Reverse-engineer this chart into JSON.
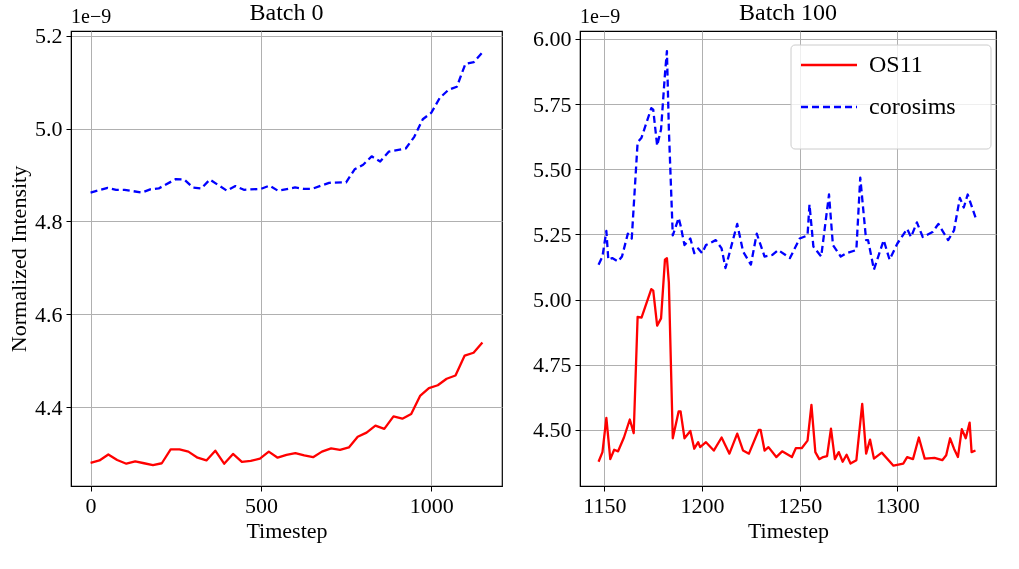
{
  "chart_data": [
    {
      "type": "line",
      "title": "Batch 0",
      "xlabel": "Timestep",
      "ylabel": "Normalized Intensity",
      "annotations": [
        "1e−9"
      ],
      "xlim": [
        -57.5,
        1207.5
      ],
      "xticks": [
        0,
        500,
        1000
      ],
      "ylim": [
        4.23,
        5.21
      ],
      "yticks": [
        4.4,
        4.6,
        4.8,
        {
          "value": 5,
          "label": "5.0"
        },
        5.2
      ],
      "grid": true,
      "series": [
        {
          "color": "#ff0000",
          "line_style": "solid",
          "x": [
            0,
            26,
            52,
            78,
            105,
            131,
            157,
            183,
            209,
            235,
            261,
            287,
            314,
            340,
            366,
            392,
            418,
            444,
            470,
            497,
            523,
            549,
            575,
            601,
            627,
            653,
            679,
            706,
            732,
            758,
            784,
            810,
            836,
            862,
            889,
            915,
            941,
            967,
            993,
            1019,
            1045,
            1071,
            1098,
            1124,
            1150
          ],
          "values": [
            4.28,
            4.285,
            4.298,
            4.286,
            4.278,
            4.283,
            4.279,
            4.275,
            4.279,
            4.309,
            4.309,
            4.304,
            4.291,
            4.285,
            4.306,
            4.278,
            4.299,
            4.282,
            4.284,
            4.289,
            4.304,
            4.291,
            4.297,
            4.301,
            4.296,
            4.292,
            4.304,
            4.311,
            4.308,
            4.313,
            4.336,
            4.345,
            4.36,
            4.353,
            4.38,
            4.375,
            4.385,
            4.424,
            4.441,
            4.447,
            4.461,
            4.468,
            4.511,
            4.517,
            4.539
          ]
        },
        {
          "color": "#0000ff",
          "line_style": "dashed",
          "x": [
            0,
            50,
            75,
            100,
            150,
            175,
            200,
            250,
            275,
            300,
            325,
            350,
            400,
            425,
            450,
            500,
            525,
            550,
            600,
            625,
            650,
            700,
            750,
            775,
            800,
            825,
            850,
            875,
            925,
            950,
            975,
            1000,
            1025,
            1050,
            1075,
            1100,
            1125,
            1150
          ],
          "values": [
            4.862,
            4.872,
            4.868,
            4.868,
            4.862,
            4.869,
            4.871,
            4.891,
            4.89,
            4.873,
            4.871,
            4.89,
            4.866,
            4.876,
            4.868,
            4.87,
            4.877,
            4.866,
            4.873,
            4.87,
            4.87,
            4.883,
            4.884,
            4.912,
            4.922,
            4.94,
            4.929,
            4.95,
            4.957,
            4.982,
            5.02,
            5.034,
            5.066,
            5.083,
            5.09,
            5.139,
            5.143,
            5.164
          ]
        }
      ]
    },
    {
      "type": "line",
      "title": "Batch 100",
      "xlabel": "Timestep",
      "annotations": [
        "1e−9"
      ],
      "xlim": [
        1137.5,
        1350.5
      ],
      "xticks": [
        1150,
        1200,
        1250,
        1300
      ],
      "ylim": [
        4.285,
        6.03
      ],
      "yticks": [
        {
          "value": 4.5,
          "label": "4.50"
        },
        {
          "value": 4.75,
          "label": "4.75"
        },
        {
          "value": 5,
          "label": "5.00"
        },
        {
          "value": 5.25,
          "label": "5.25"
        },
        {
          "value": 5.5,
          "label": "5.50"
        },
        {
          "value": 5.75,
          "label": "5.75"
        },
        {
          "value": 6,
          "label": "6.00"
        }
      ],
      "grid": true,
      "legend": "top right",
      "series": [
        {
          "name": "OS11",
          "color": "#ff0000",
          "line_style": "solid",
          "x": [
            1147,
            1149,
            1151,
            1153,
            1155,
            1157,
            1160,
            1163,
            1165,
            1167,
            1169,
            1174,
            1175,
            1177,
            1179,
            1181,
            1182,
            1183,
            1185,
            1188,
            1189,
            1191,
            1194,
            1196,
            1198,
            1199,
            1202,
            1206,
            1210,
            1214,
            1218,
            1221,
            1224,
            1229,
            1230,
            1232,
            1234,
            1238,
            1241,
            1246,
            1248,
            1251,
            1254,
            1256,
            1258,
            1260,
            1262,
            1264,
            1266,
            1268,
            1270,
            1272,
            1274,
            1276,
            1279,
            1282,
            1284,
            1286,
            1288,
            1292,
            1298,
            1303,
            1305,
            1308,
            1311,
            1314,
            1319,
            1323,
            1325,
            1327,
            1329,
            1331,
            1333,
            1335,
            1337,
            1338,
            1340
          ],
          "values": [
            4.378,
            4.415,
            4.546,
            4.388,
            4.424,
            4.418,
            4.471,
            4.54,
            4.488,
            4.934,
            4.931,
            5.04,
            5.034,
            4.9,
            4.928,
            5.153,
            5.159,
            5.065,
            4.468,
            4.571,
            4.571,
            4.468,
            4.496,
            4.428,
            4.453,
            4.434,
            4.453,
            4.421,
            4.471,
            4.409,
            4.486,
            4.421,
            4.409,
            4.5,
            4.5,
            4.421,
            4.434,
            4.396,
            4.418,
            4.396,
            4.43,
            4.43,
            4.459,
            4.596,
            4.415,
            4.388,
            4.396,
            4.4,
            4.505,
            4.388,
            4.415,
            4.378,
            4.405,
            4.371,
            4.384,
            4.6,
            4.409,
            4.463,
            4.39,
            4.413,
            4.363,
            4.371,
            4.396,
            4.388,
            4.471,
            4.39,
            4.393,
            4.384,
            4.403,
            4.468,
            4.428,
            4.396,
            4.503,
            4.468,
            4.528,
            4.415,
            4.421
          ]
        },
        {
          "name": "corosims",
          "color": "#0000ff",
          "line_style": "dashed",
          "x": [
            1147,
            1149,
            1151,
            1152,
            1154,
            1157,
            1159,
            1162,
            1164,
            1167,
            1169,
            1174,
            1175,
            1177,
            1179,
            1181,
            1182,
            1183,
            1185,
            1188,
            1189,
            1191,
            1194,
            1196,
            1198,
            1200,
            1202,
            1207,
            1210,
            1212,
            1218,
            1221,
            1225,
            1228,
            1232,
            1236,
            1239,
            1245,
            1250,
            1254,
            1255,
            1257,
            1261,
            1265,
            1267,
            1271,
            1274,
            1279,
            1281,
            1284,
            1285,
            1288,
            1293,
            1296,
            1300,
            1305,
            1307,
            1310,
            1313,
            1318,
            1321,
            1326,
            1329,
            1332,
            1334,
            1336,
            1340
          ],
          "values": [
            5.134,
            5.165,
            5.263,
            5.153,
            5.159,
            5.146,
            5.165,
            5.253,
            5.234,
            5.603,
            5.621,
            5.734,
            5.728,
            5.59,
            5.653,
            5.865,
            5.953,
            5.653,
            5.246,
            5.313,
            5.284,
            5.209,
            5.234,
            5.178,
            5.196,
            5.178,
            5.209,
            5.228,
            5.196,
            5.121,
            5.29,
            5.184,
            5.134,
            5.253,
            5.165,
            5.171,
            5.19,
            5.159,
            5.234,
            5.246,
            5.365,
            5.203,
            5.165,
            5.403,
            5.209,
            5.165,
            5.178,
            5.19,
            5.468,
            5.228,
            5.228,
            5.115,
            5.228,
            5.153,
            5.215,
            5.271,
            5.24,
            5.296,
            5.24,
            5.259,
            5.29,
            5.228,
            5.265,
            5.39,
            5.353,
            5.403,
            5.315
          ]
        }
      ]
    }
  ]
}
